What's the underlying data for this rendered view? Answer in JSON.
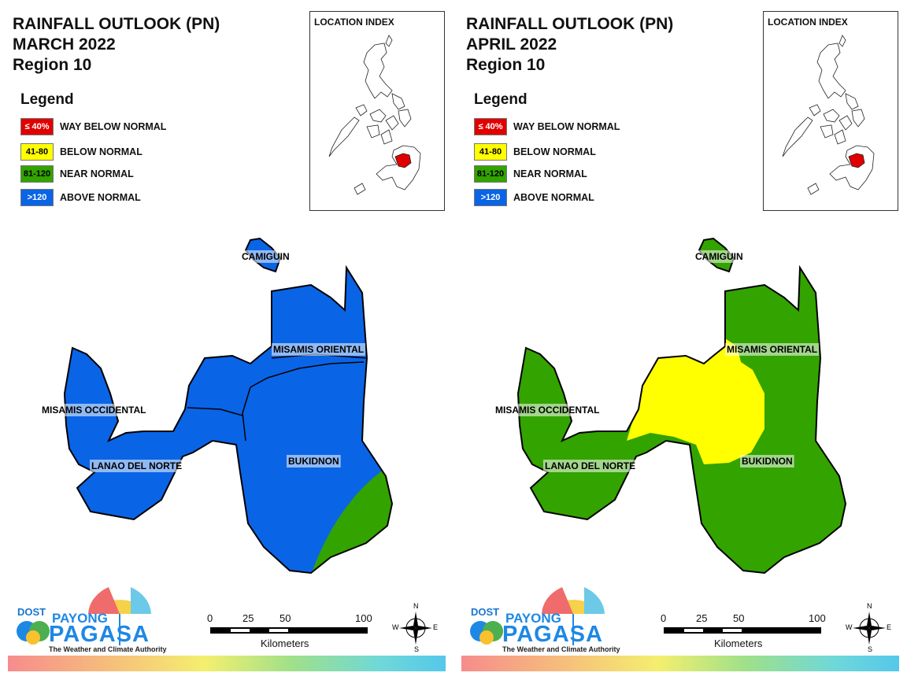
{
  "panels": [
    {
      "title_line1": "RAINFALL OUTLOOK (PN)",
      "title_line2": "MARCH 2022",
      "title_line3": "Region 10",
      "legend_title": "Legend",
      "legend": [
        {
          "swatch": "≤ 40%",
          "label": "WAY BELOW NORMAL",
          "color": "#e00000",
          "text_color": "#ffffff"
        },
        {
          "swatch": "41-80",
          "label": "BELOW NORMAL",
          "color": "#ffff00",
          "text_color": "#000000"
        },
        {
          "swatch": "81-120",
          "label": "NEAR NORMAL",
          "color": "#33a300",
          "text_color": "#000000"
        },
        {
          "swatch": ">120",
          "label": "ABOVE NORMAL",
          "color": "#0a64e6",
          "text_color": "#ffffff"
        }
      ],
      "index_title": "LOCATION INDEX",
      "provinces": {
        "camiguin": "CAMIGUIN",
        "misamis_oriental": "MISAMIS ORIENTAL",
        "misamis_occidental": "MISAMIS OCCIDENTAL",
        "lanao_del_norte": "LANAO DEL NORTE",
        "bukidnon": "BUKIDNON"
      },
      "scale": {
        "ticks": [
          "0",
          "25",
          "50",
          "100"
        ],
        "unit": "Kilometers"
      },
      "compass": {
        "n": "N",
        "e": "E",
        "s": "S",
        "w": "W"
      },
      "logo": {
        "dost": "DOST",
        "payong": "PAYONG",
        "pagasa": "PAGASA",
        "tagline": "The Weather and Climate Authority"
      }
    },
    {
      "title_line1": "RAINFALL OUTLOOK (PN)",
      "title_line2": "APRIL 2022",
      "title_line3": "Region 10",
      "legend_title": "Legend",
      "legend": [
        {
          "swatch": "≤ 40%",
          "label": "WAY BELOW NORMAL",
          "color": "#e00000",
          "text_color": "#ffffff"
        },
        {
          "swatch": "41-80",
          "label": "BELOW NORMAL",
          "color": "#ffff00",
          "text_color": "#000000"
        },
        {
          "swatch": "81-120",
          "label": "NEAR NORMAL",
          "color": "#33a300",
          "text_color": "#000000"
        },
        {
          "swatch": ">120",
          "label": "ABOVE NORMAL",
          "color": "#0a64e6",
          "text_color": "#ffffff"
        }
      ],
      "index_title": "LOCATION INDEX",
      "provinces": {
        "camiguin": "CAMIGUIN",
        "misamis_oriental": "MISAMIS ORIENTAL",
        "misamis_occidental": "MISAMIS OCCIDENTAL",
        "lanao_del_norte": "LANAO DEL NORTE",
        "bukidnon": "BUKIDNON"
      },
      "scale": {
        "ticks": [
          "0",
          "25",
          "50",
          "100"
        ],
        "unit": "Kilometers"
      },
      "compass": {
        "n": "N",
        "e": "E",
        "s": "S",
        "w": "W"
      },
      "logo": {
        "dost": "DOST",
        "payong": "PAYONG",
        "pagasa": "PAGASA",
        "tagline": "The Weather and Climate Authority"
      }
    }
  ],
  "map_colors": {
    "march": {
      "base": "#0a64e6",
      "secondary": "#33a300",
      "secondary_region": "southeast corner of Bukidnon"
    },
    "april": {
      "base": "#33a300",
      "secondary": "#ffff00",
      "secondary_region": "northern Bukidnon, eastern Lanao del Norte, western Misamis Oriental"
    },
    "highlight": "#e00000"
  }
}
